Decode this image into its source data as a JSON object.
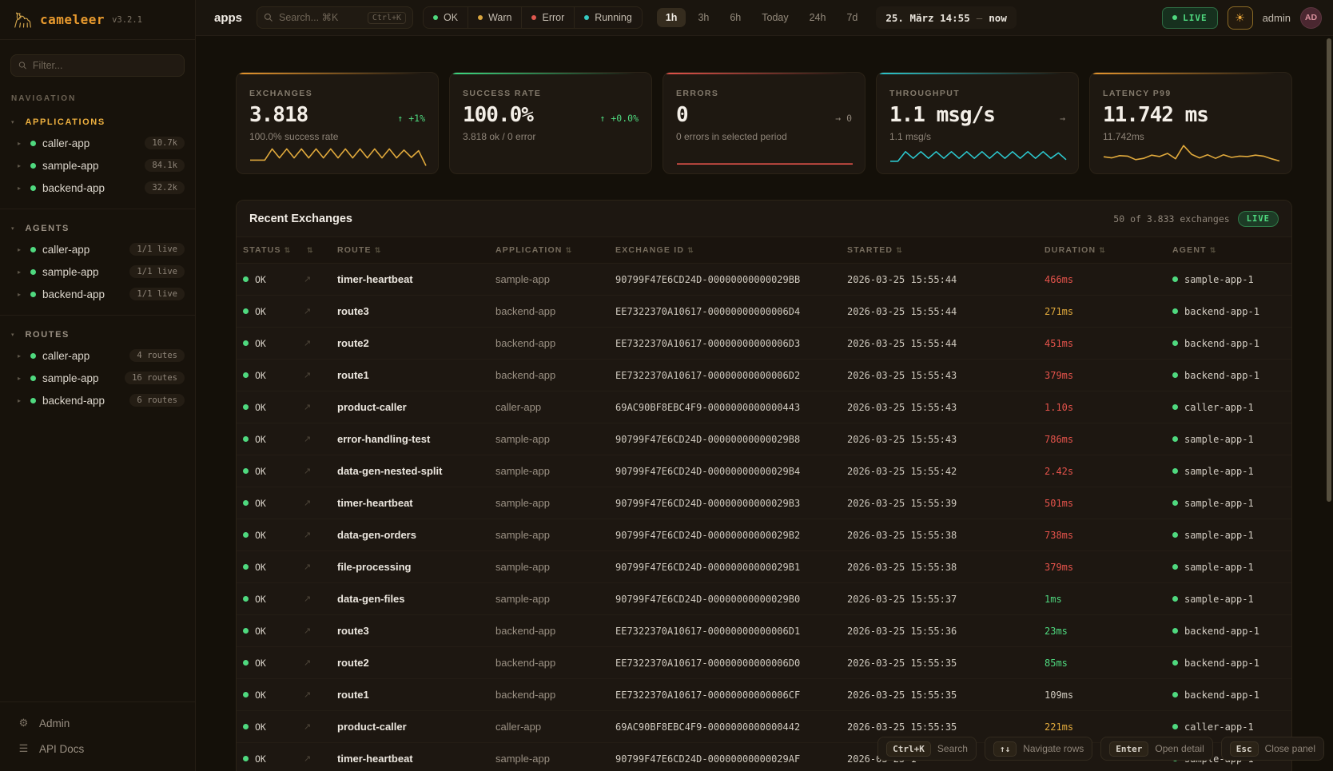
{
  "app": {
    "name": "cameleer",
    "version": "v3.2.1"
  },
  "topbar": {
    "context_label": "apps",
    "search": {
      "placeholder": "Search... ⌘K",
      "kbd": "Ctrl+K"
    },
    "status_filters": [
      {
        "label": "OK",
        "color": "#4fd97f"
      },
      {
        "label": "Warn",
        "color": "#d9a53f"
      },
      {
        "label": "Error",
        "color": "#e0584f"
      },
      {
        "label": "Running",
        "color": "#35c9c1"
      }
    ],
    "time_ranges": [
      "1h",
      "3h",
      "6h",
      "Today",
      "24h",
      "7d"
    ],
    "active_range": "1h",
    "date_label": "25. März 14:55",
    "date_sep": "—",
    "date_now": "now",
    "live_label": "LIVE",
    "user": "admin",
    "avatar": "AD"
  },
  "sidebar": {
    "filter_placeholder": "Filter...",
    "nav_label": "NAVIGATION",
    "sections": [
      {
        "title": "APPLICATIONS",
        "accent": true,
        "items": [
          {
            "label": "caller-app",
            "badge": "10.7k"
          },
          {
            "label": "sample-app",
            "badge": "84.1k"
          },
          {
            "label": "backend-app",
            "badge": "32.2k"
          }
        ]
      },
      {
        "title": "AGENTS",
        "accent": false,
        "items": [
          {
            "label": "caller-app",
            "badge": "1/1 live"
          },
          {
            "label": "sample-app",
            "badge": "1/1 live"
          },
          {
            "label": "backend-app",
            "badge": "1/1 live"
          }
        ]
      },
      {
        "title": "ROUTES",
        "accent": false,
        "items": [
          {
            "label": "caller-app",
            "badge": "4 routes"
          },
          {
            "label": "sample-app",
            "badge": "16 routes"
          },
          {
            "label": "backend-app",
            "badge": "6 routes"
          }
        ]
      }
    ],
    "footer": [
      {
        "label": "Admin",
        "icon": "gear-icon",
        "glyph": "⚙"
      },
      {
        "label": "API Docs",
        "icon": "docs-icon",
        "glyph": "☰"
      }
    ]
  },
  "cards": [
    {
      "title": "EXCHANGES",
      "value": "3.818",
      "delta": "↑ +1%",
      "delta_style": "green",
      "sub": "100.0% success rate",
      "stripe": "#e8972e",
      "spark_color": "#e0a93c",
      "spark": [
        2,
        2,
        2,
        7,
        3,
        7,
        3,
        7,
        3,
        7,
        3,
        7,
        3,
        7,
        3,
        7,
        3,
        7,
        3,
        7,
        3,
        6.5,
        3.2,
        6.2,
        -0.5
      ]
    },
    {
      "title": "SUCCESS RATE",
      "value": "100.0%",
      "delta": "↑ +0.0%",
      "delta_style": "green",
      "sub": "3.818 ok / 0 error",
      "stripe": "#3ddc84",
      "spark_color": "",
      "spark": []
    },
    {
      "title": "ERRORS",
      "value": "0",
      "delta": "→ 0",
      "delta_style": "muted",
      "sub": "0 errors in selected period",
      "stripe": "#e5534b",
      "spark_color": "#e5534b",
      "spark": [
        0.3,
        0.3
      ]
    },
    {
      "title": "THROUGHPUT",
      "value": "1.1 msg/s",
      "delta": "→",
      "delta_style": "muted",
      "sub": "1.1 msg/s",
      "stripe": "#2cc8cf",
      "spark_color": "#2cc8cf",
      "spark": [
        1.5,
        1.5,
        5.8,
        2.8,
        5.8,
        2.8,
        5.8,
        2.8,
        5.8,
        2.8,
        5.8,
        2.8,
        5.8,
        2.8,
        5.8,
        2.8,
        5.8,
        2.8,
        5.8,
        2.8,
        5.8,
        2.8,
        5.2,
        2.2
      ]
    },
    {
      "title": "LATENCY P99",
      "value": "11.742 ms",
      "delta": "",
      "delta_style": "muted",
      "sub": "11.742ms",
      "stripe": "#e8972e",
      "spark_color": "#e0a93c",
      "spark": [
        3.5,
        3,
        4,
        3.8,
        2.2,
        2.8,
        4.2,
        3.6,
        5,
        2.6,
        8.5,
        4.6,
        3,
        4.4,
        2.8,
        4.4,
        3.2,
        3.8,
        3.6,
        4.2,
        3.8,
        2.6,
        1.6
      ]
    }
  ],
  "table": {
    "title": "Recent Exchanges",
    "summary": "50 of 3.833 exchanges",
    "live_label": "LIVE",
    "columns": [
      "STATUS",
      "",
      "ROUTE",
      "APPLICATION",
      "EXCHANGE ID",
      "STARTED",
      "DURATION",
      "AGENT"
    ],
    "status_label": "OK",
    "rows": [
      {
        "status": "OK",
        "route": "timer-heartbeat",
        "app": "sample-app",
        "id": "90799F47E6CD24D-00000000000029BB",
        "started": "2026-03-25 15:55:44",
        "duration": "466ms",
        "duration_style": "red",
        "agent": "sample-app-1"
      },
      {
        "status": "OK",
        "route": "route3",
        "app": "backend-app",
        "id": "EE7322370A10617-00000000000006D4",
        "started": "2026-03-25 15:55:44",
        "duration": "271ms",
        "duration_style": "orange",
        "agent": "backend-app-1"
      },
      {
        "status": "OK",
        "route": "route2",
        "app": "backend-app",
        "id": "EE7322370A10617-00000000000006D3",
        "started": "2026-03-25 15:55:44",
        "duration": "451ms",
        "duration_style": "red",
        "agent": "backend-app-1"
      },
      {
        "status": "OK",
        "route": "route1",
        "app": "backend-app",
        "id": "EE7322370A10617-00000000000006D2",
        "started": "2026-03-25 15:55:43",
        "duration": "379ms",
        "duration_style": "red",
        "agent": "backend-app-1"
      },
      {
        "status": "OK",
        "route": "product-caller",
        "app": "caller-app",
        "id": "69AC90BF8EBC4F9-0000000000000443",
        "started": "2026-03-25 15:55:43",
        "duration": "1.10s",
        "duration_style": "red",
        "agent": "caller-app-1"
      },
      {
        "status": "OK",
        "route": "error-handling-test",
        "app": "sample-app",
        "id": "90799F47E6CD24D-00000000000029B8",
        "started": "2026-03-25 15:55:43",
        "duration": "786ms",
        "duration_style": "red",
        "agent": "sample-app-1"
      },
      {
        "status": "OK",
        "route": "data-gen-nested-split",
        "app": "sample-app",
        "id": "90799F47E6CD24D-00000000000029B4",
        "started": "2026-03-25 15:55:42",
        "duration": "2.42s",
        "duration_style": "red",
        "agent": "sample-app-1"
      },
      {
        "status": "OK",
        "route": "timer-heartbeat",
        "app": "sample-app",
        "id": "90799F47E6CD24D-00000000000029B3",
        "started": "2026-03-25 15:55:39",
        "duration": "501ms",
        "duration_style": "red",
        "agent": "sample-app-1"
      },
      {
        "status": "OK",
        "route": "data-gen-orders",
        "app": "sample-app",
        "id": "90799F47E6CD24D-00000000000029B2",
        "started": "2026-03-25 15:55:38",
        "duration": "738ms",
        "duration_style": "red",
        "agent": "sample-app-1"
      },
      {
        "status": "OK",
        "route": "file-processing",
        "app": "sample-app",
        "id": "90799F47E6CD24D-00000000000029B1",
        "started": "2026-03-25 15:55:38",
        "duration": "379ms",
        "duration_style": "red",
        "agent": "sample-app-1"
      },
      {
        "status": "OK",
        "route": "data-gen-files",
        "app": "sample-app",
        "id": "90799F47E6CD24D-00000000000029B0",
        "started": "2026-03-25 15:55:37",
        "duration": "1ms",
        "duration_style": "green",
        "agent": "sample-app-1"
      },
      {
        "status": "OK",
        "route": "route3",
        "app": "backend-app",
        "id": "EE7322370A10617-00000000000006D1",
        "started": "2026-03-25 15:55:36",
        "duration": "23ms",
        "duration_style": "green",
        "agent": "backend-app-1"
      },
      {
        "status": "OK",
        "route": "route2",
        "app": "backend-app",
        "id": "EE7322370A10617-00000000000006D0",
        "started": "2026-03-25 15:55:35",
        "duration": "85ms",
        "duration_style": "green",
        "agent": "backend-app-1"
      },
      {
        "status": "OK",
        "route": "route1",
        "app": "backend-app",
        "id": "EE7322370A10617-00000000000006CF",
        "started": "2026-03-25 15:55:35",
        "duration": "109ms",
        "duration_style": "neutral",
        "agent": "backend-app-1"
      },
      {
        "status": "OK",
        "route": "product-caller",
        "app": "caller-app",
        "id": "69AC90BF8EBC4F9-0000000000000442",
        "started": "2026-03-25 15:55:35",
        "duration": "221ms",
        "duration_style": "orange",
        "agent": "caller-app-1"
      },
      {
        "status": "OK",
        "route": "timer-heartbeat",
        "app": "sample-app",
        "id": "90799F47E6CD24D-00000000000029AF",
        "started": "2026-03-25 1",
        "duration": "",
        "duration_style": "neutral",
        "agent": "sample-app-1"
      }
    ]
  },
  "shortcuts": [
    {
      "key": "Ctrl+K",
      "label": "Search"
    },
    {
      "key": "↑↓",
      "label": "Navigate rows"
    },
    {
      "key": "Enter",
      "label": "Open detail"
    },
    {
      "key": "Esc",
      "label": "Close panel"
    }
  ]
}
